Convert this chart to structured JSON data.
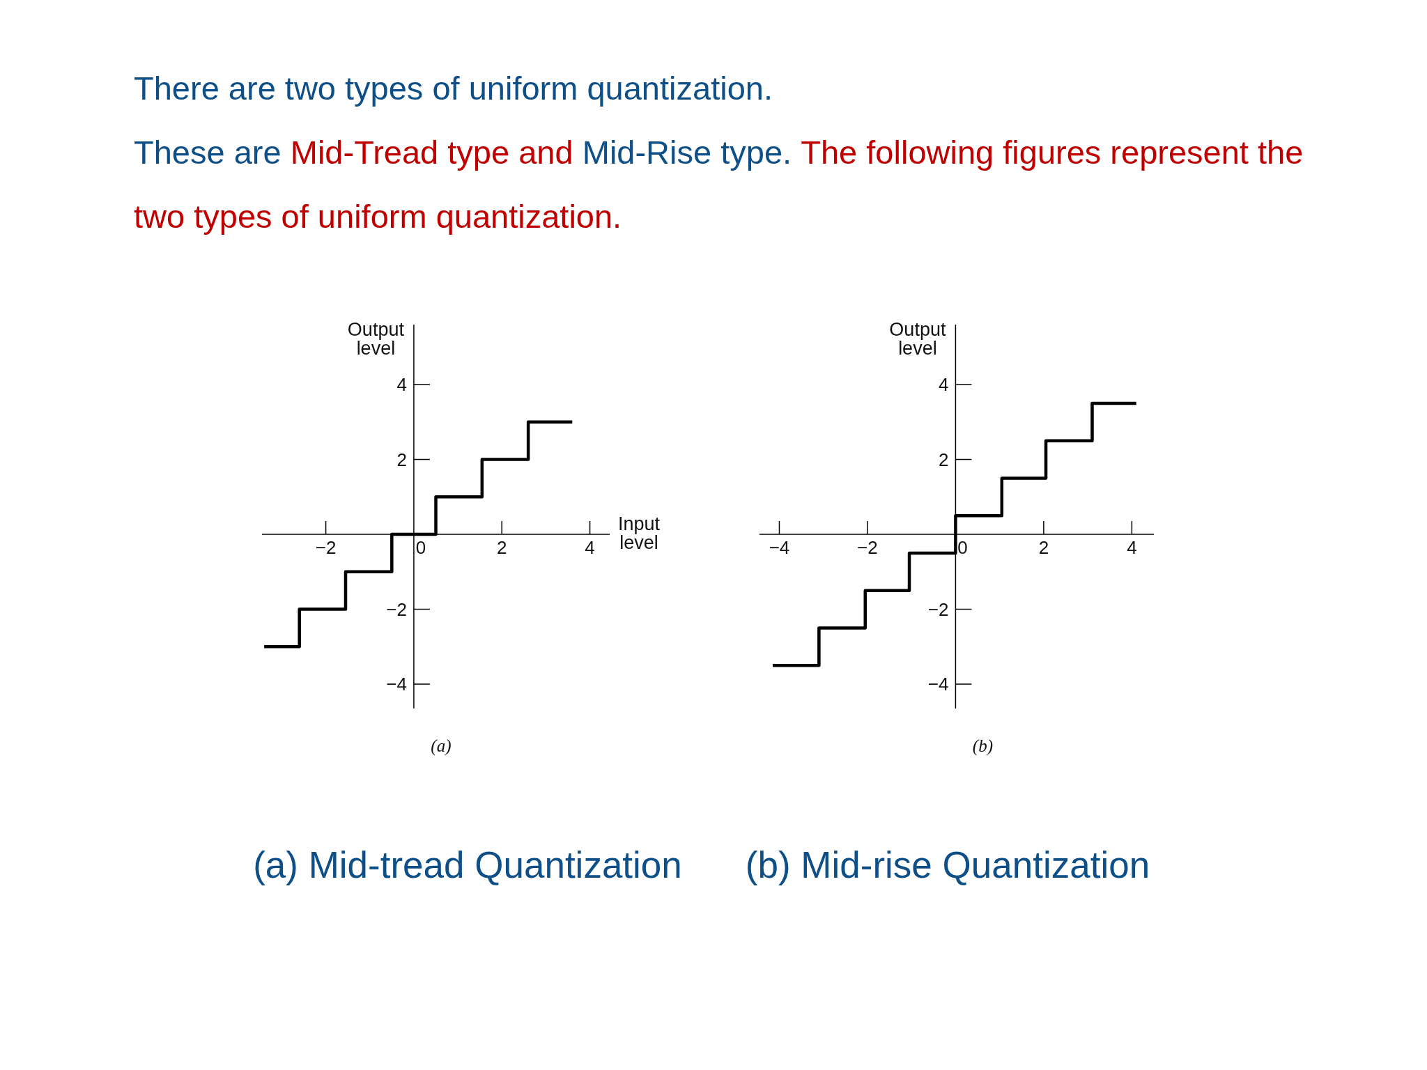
{
  "chart_data": [
    {
      "type": "other",
      "title": "There are two types of uniform quantization.",
      "annotations": [
        "These are",
        "Mid-Tread type and",
        "Mid-Rise type.",
        "The following figures represent the",
        "two types of uniform quantization."
      ]
    },
    {
      "type": "step",
      "x": [
        -3.4,
        -2.6,
        -1.55,
        -0.5,
        0.5,
        1.55,
        2.6,
        3.6
      ],
      "values": [
        -3,
        -2,
        -1,
        0,
        1,
        2,
        3,
        3
      ],
      "color": "#000000",
      "xlabel": "Input level",
      "ylabel": "Output level",
      "xlim": [
        -3.45,
        4.45
      ],
      "ylim": [
        -4.65,
        5.6
      ],
      "xticks": [
        -2,
        0,
        2,
        4
      ],
      "yticks": [
        -4,
        -2,
        2,
        4
      ],
      "marker": "none",
      "line_style": "solid",
      "annotations": [
        "(a)",
        "(a) Mid-tread Quantization"
      ]
    },
    {
      "type": "step",
      "x": [
        -4.15,
        -3.1,
        -2.05,
        -1.05,
        0,
        1.05,
        2.05,
        3.1,
        4.1
      ],
      "values": [
        -3.5,
        -2.5,
        -1.5,
        -0.5,
        0.5,
        1.5,
        2.5,
        3.5,
        3.5
      ],
      "color": "#000000",
      "ylabel": "Output level",
      "xlim": [
        -4.45,
        4.5
      ],
      "ylim": [
        -4.65,
        5.6
      ],
      "xticks": [
        -4,
        -2,
        0,
        2,
        4
      ],
      "yticks": [
        -4,
        -2,
        2,
        4
      ],
      "marker": "none",
      "line_style": "solid",
      "annotations": [
        "(b)",
        "(b) Mid-rise Quantization"
      ]
    }
  ]
}
